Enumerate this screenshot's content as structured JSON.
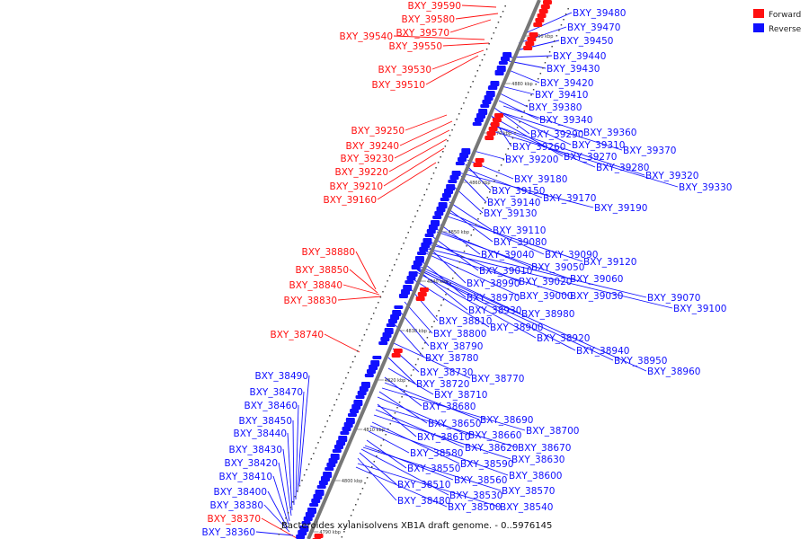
{
  "caption": "Bacteroides xylanisolvens XB1A draft genome. - 0..5976145",
  "legend": [
    {
      "label": "Forward",
      "color": "#ff1010"
    },
    {
      "label": "Reverse",
      "color": "#1010ff"
    }
  ],
  "ticks": [
    "4790 kbp",
    "4800 kbp",
    "4810 kbp",
    "4820 kbp",
    "4830 kbp",
    "4840 kbp",
    "4850 kbp",
    "4860 kbp",
    "4870 kbp",
    "4880 kbp",
    "4890 kbp"
  ],
  "forward_genes": [
    "BXY_39590",
    "BXY_39580",
    "BXY_39570",
    "BXY_39540",
    "BXY_39550",
    "BXY_39530",
    "BXY_39510",
    "BXY_39250",
    "BXY_39240",
    "BXY_39230",
    "BXY_39220",
    "BXY_39210",
    "BXY_39160",
    "BXY_38880",
    "BXY_38850",
    "BXY_38840",
    "BXY_38830",
    "BXY_38740",
    "BXY_38370"
  ],
  "reverse_genes": [
    "BXY_39480",
    "BXY_39470",
    "BXY_39450",
    "BXY_39440",
    "BXY_39430",
    "BXY_39420",
    "BXY_39410",
    "BXY_39380",
    "BXY_39340",
    "BXY_39360",
    "BXY_39290",
    "BXY_39310",
    "BXY_39370",
    "BXY_39260",
    "BXY_39270",
    "BXY_39200",
    "BXY_39280",
    "BXY_39320",
    "BXY_39330",
    "BXY_39180",
    "BXY_39150",
    "BXY_39170",
    "BXY_39140",
    "BXY_39190",
    "BXY_39130",
    "BXY_39110",
    "BXY_39080",
    "BXY_39090",
    "BXY_39040",
    "BXY_39120",
    "BXY_39050",
    "BXY_39010",
    "BXY_39060",
    "BXY_38990",
    "BXY_39020",
    "BXY_38970",
    "BXY_39000",
    "BXY_39030",
    "BXY_39070",
    "BXY_38930",
    "BXY_39100",
    "BXY_38980",
    "BXY_38810",
    "BXY_38900",
    "BXY_38800",
    "BXY_38920",
    "BXY_38790",
    "BXY_38940",
    "BXY_38780",
    "BXY_38950",
    "BXY_38960",
    "BXY_38730",
    "BXY_38770",
    "BXY_38720",
    "BXY_38710",
    "BXY_38680",
    "BXY_38690",
    "BXY_38650",
    "BXY_38700",
    "BXY_38660",
    "BXY_38610",
    "BXY_38620",
    "BXY_38670",
    "BXY_38630",
    "BXY_38590",
    "BXY_38580",
    "BXY_38600",
    "BXY_38550",
    "BXY_38560",
    "BXY_38510",
    "BXY_38530",
    "BXY_38570",
    "BXY_38480",
    "BXY_38500",
    "BXY_38540",
    "BXY_38490",
    "BXY_38470",
    "BXY_38460",
    "BXY_38450",
    "BXY_38440",
    "BXY_38430",
    "BXY_38420",
    "BXY_38410",
    "BXY_38400",
    "BXY_38380",
    "BXY_38360"
  ]
}
